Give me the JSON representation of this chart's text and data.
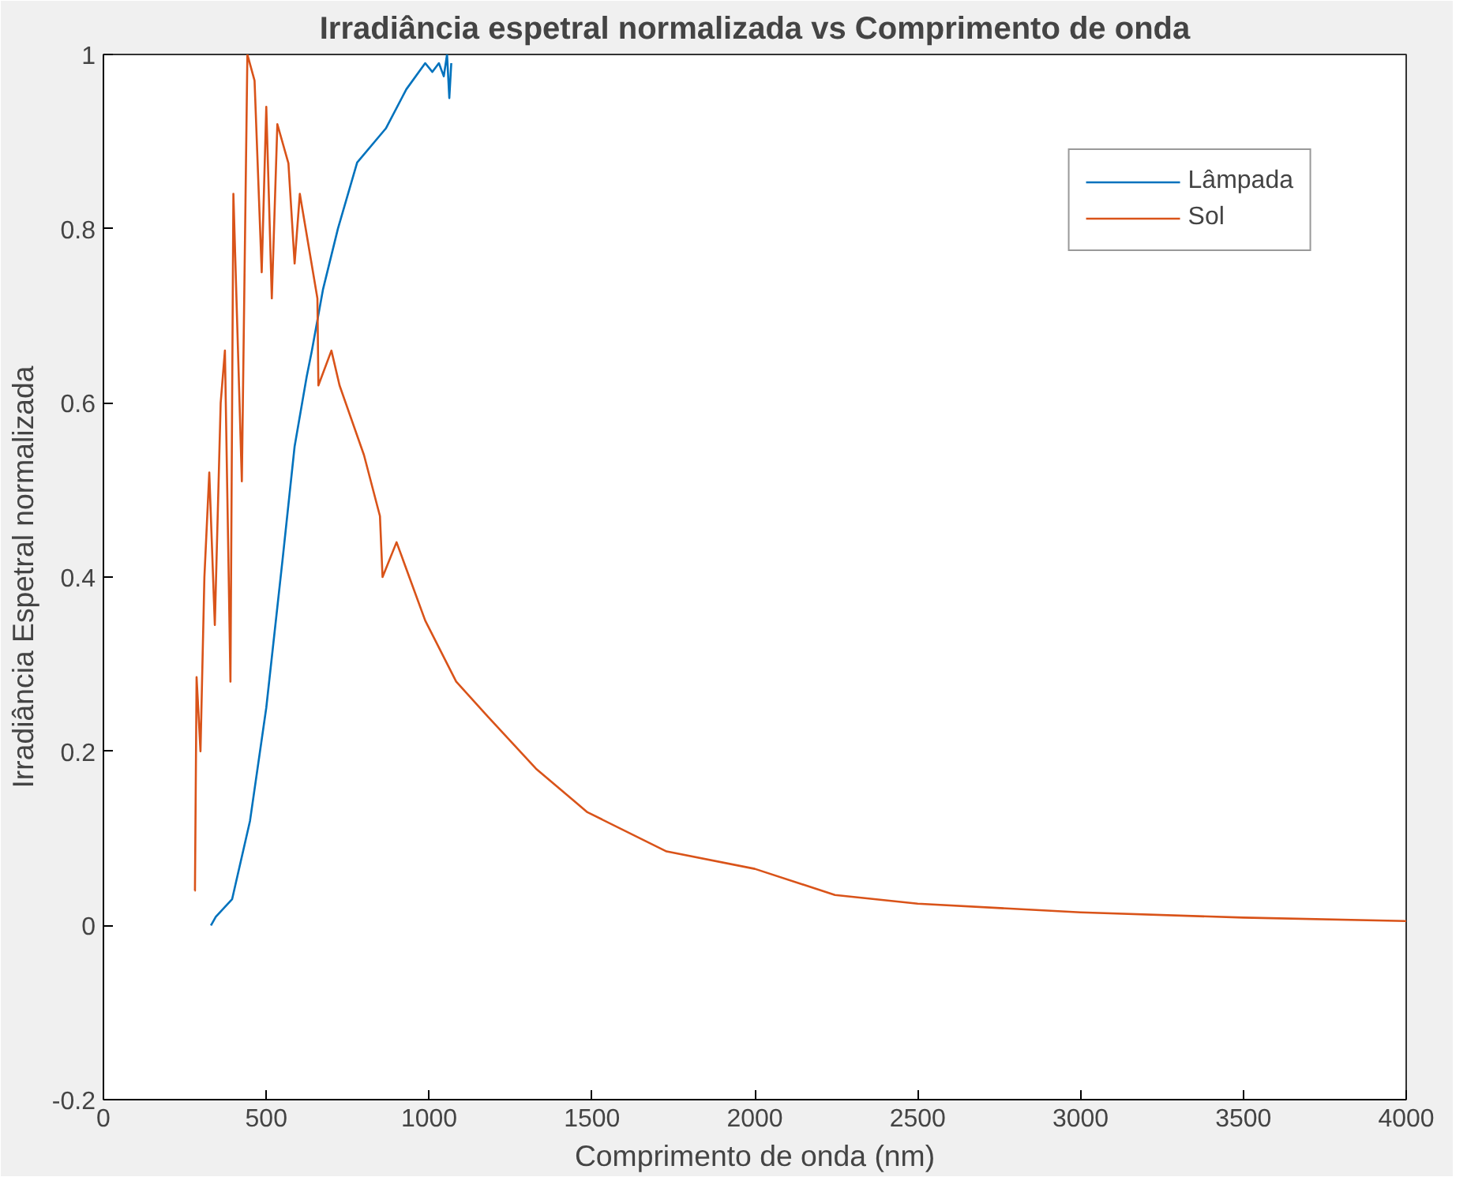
{
  "chart_data": {
    "type": "line",
    "title": "Irradiância espetral normalizada vs Comprimento de onda",
    "xlabel": "Comprimento de onda (nm)",
    "ylabel": "Irradiância Espetral normalizada",
    "xlim": [
      0,
      4000
    ],
    "ylim": [
      -0.2,
      1
    ],
    "xticks": [
      0,
      500,
      1000,
      1500,
      2000,
      2500,
      3000,
      3500,
      4000
    ],
    "yticks": [
      -0.2,
      0,
      0.2,
      0.4,
      0.6,
      0.8,
      1
    ],
    "grid": false,
    "legend": "top right",
    "line_style": "solid",
    "series": [
      {
        "name": "Lâmpada",
        "color": "#0072bd",
        "x": [
          330,
          345,
          395,
          450,
          500,
          550,
          587,
          624,
          640,
          674,
          720,
          779,
          867,
          930,
          988,
          1010,
          1030,
          1045,
          1055,
          1062,
          1068
        ],
        "values": [
          0.0,
          0.01,
          0.03,
          0.12,
          0.25,
          0.42,
          0.55,
          0.63,
          0.66,
          0.73,
          0.8,
          0.876,
          0.915,
          0.96,
          0.99,
          0.98,
          0.99,
          0.975,
          1.0,
          0.95,
          0.99
        ]
      },
      {
        "name": "Sol",
        "color": "#d95319",
        "x": [
          280,
          281,
          286,
          298,
          310,
          325,
          342,
          360,
          373,
          390,
          399,
          425,
          442,
          464,
          486,
          500,
          517,
          534,
          568,
          587,
          603,
          630,
          657,
          660,
          700,
          725,
          800,
          849,
          857,
          900,
          988,
          1083,
          1180,
          1328,
          1486,
          1729,
          2000,
          2246,
          2500,
          3000,
          3500,
          4000
        ],
        "values": [
          0.04,
          0.04,
          0.285,
          0.2,
          0.4,
          0.52,
          0.345,
          0.6,
          0.66,
          0.28,
          0.84,
          0.51,
          1.0,
          0.97,
          0.75,
          0.94,
          0.72,
          0.92,
          0.875,
          0.76,
          0.84,
          0.78,
          0.72,
          0.62,
          0.66,
          0.62,
          0.54,
          0.47,
          0.4,
          0.44,
          0.35,
          0.28,
          0.24,
          0.18,
          0.13,
          0.085,
          0.065,
          0.035,
          0.025,
          0.015,
          0.009,
          0.005
        ]
      }
    ]
  }
}
